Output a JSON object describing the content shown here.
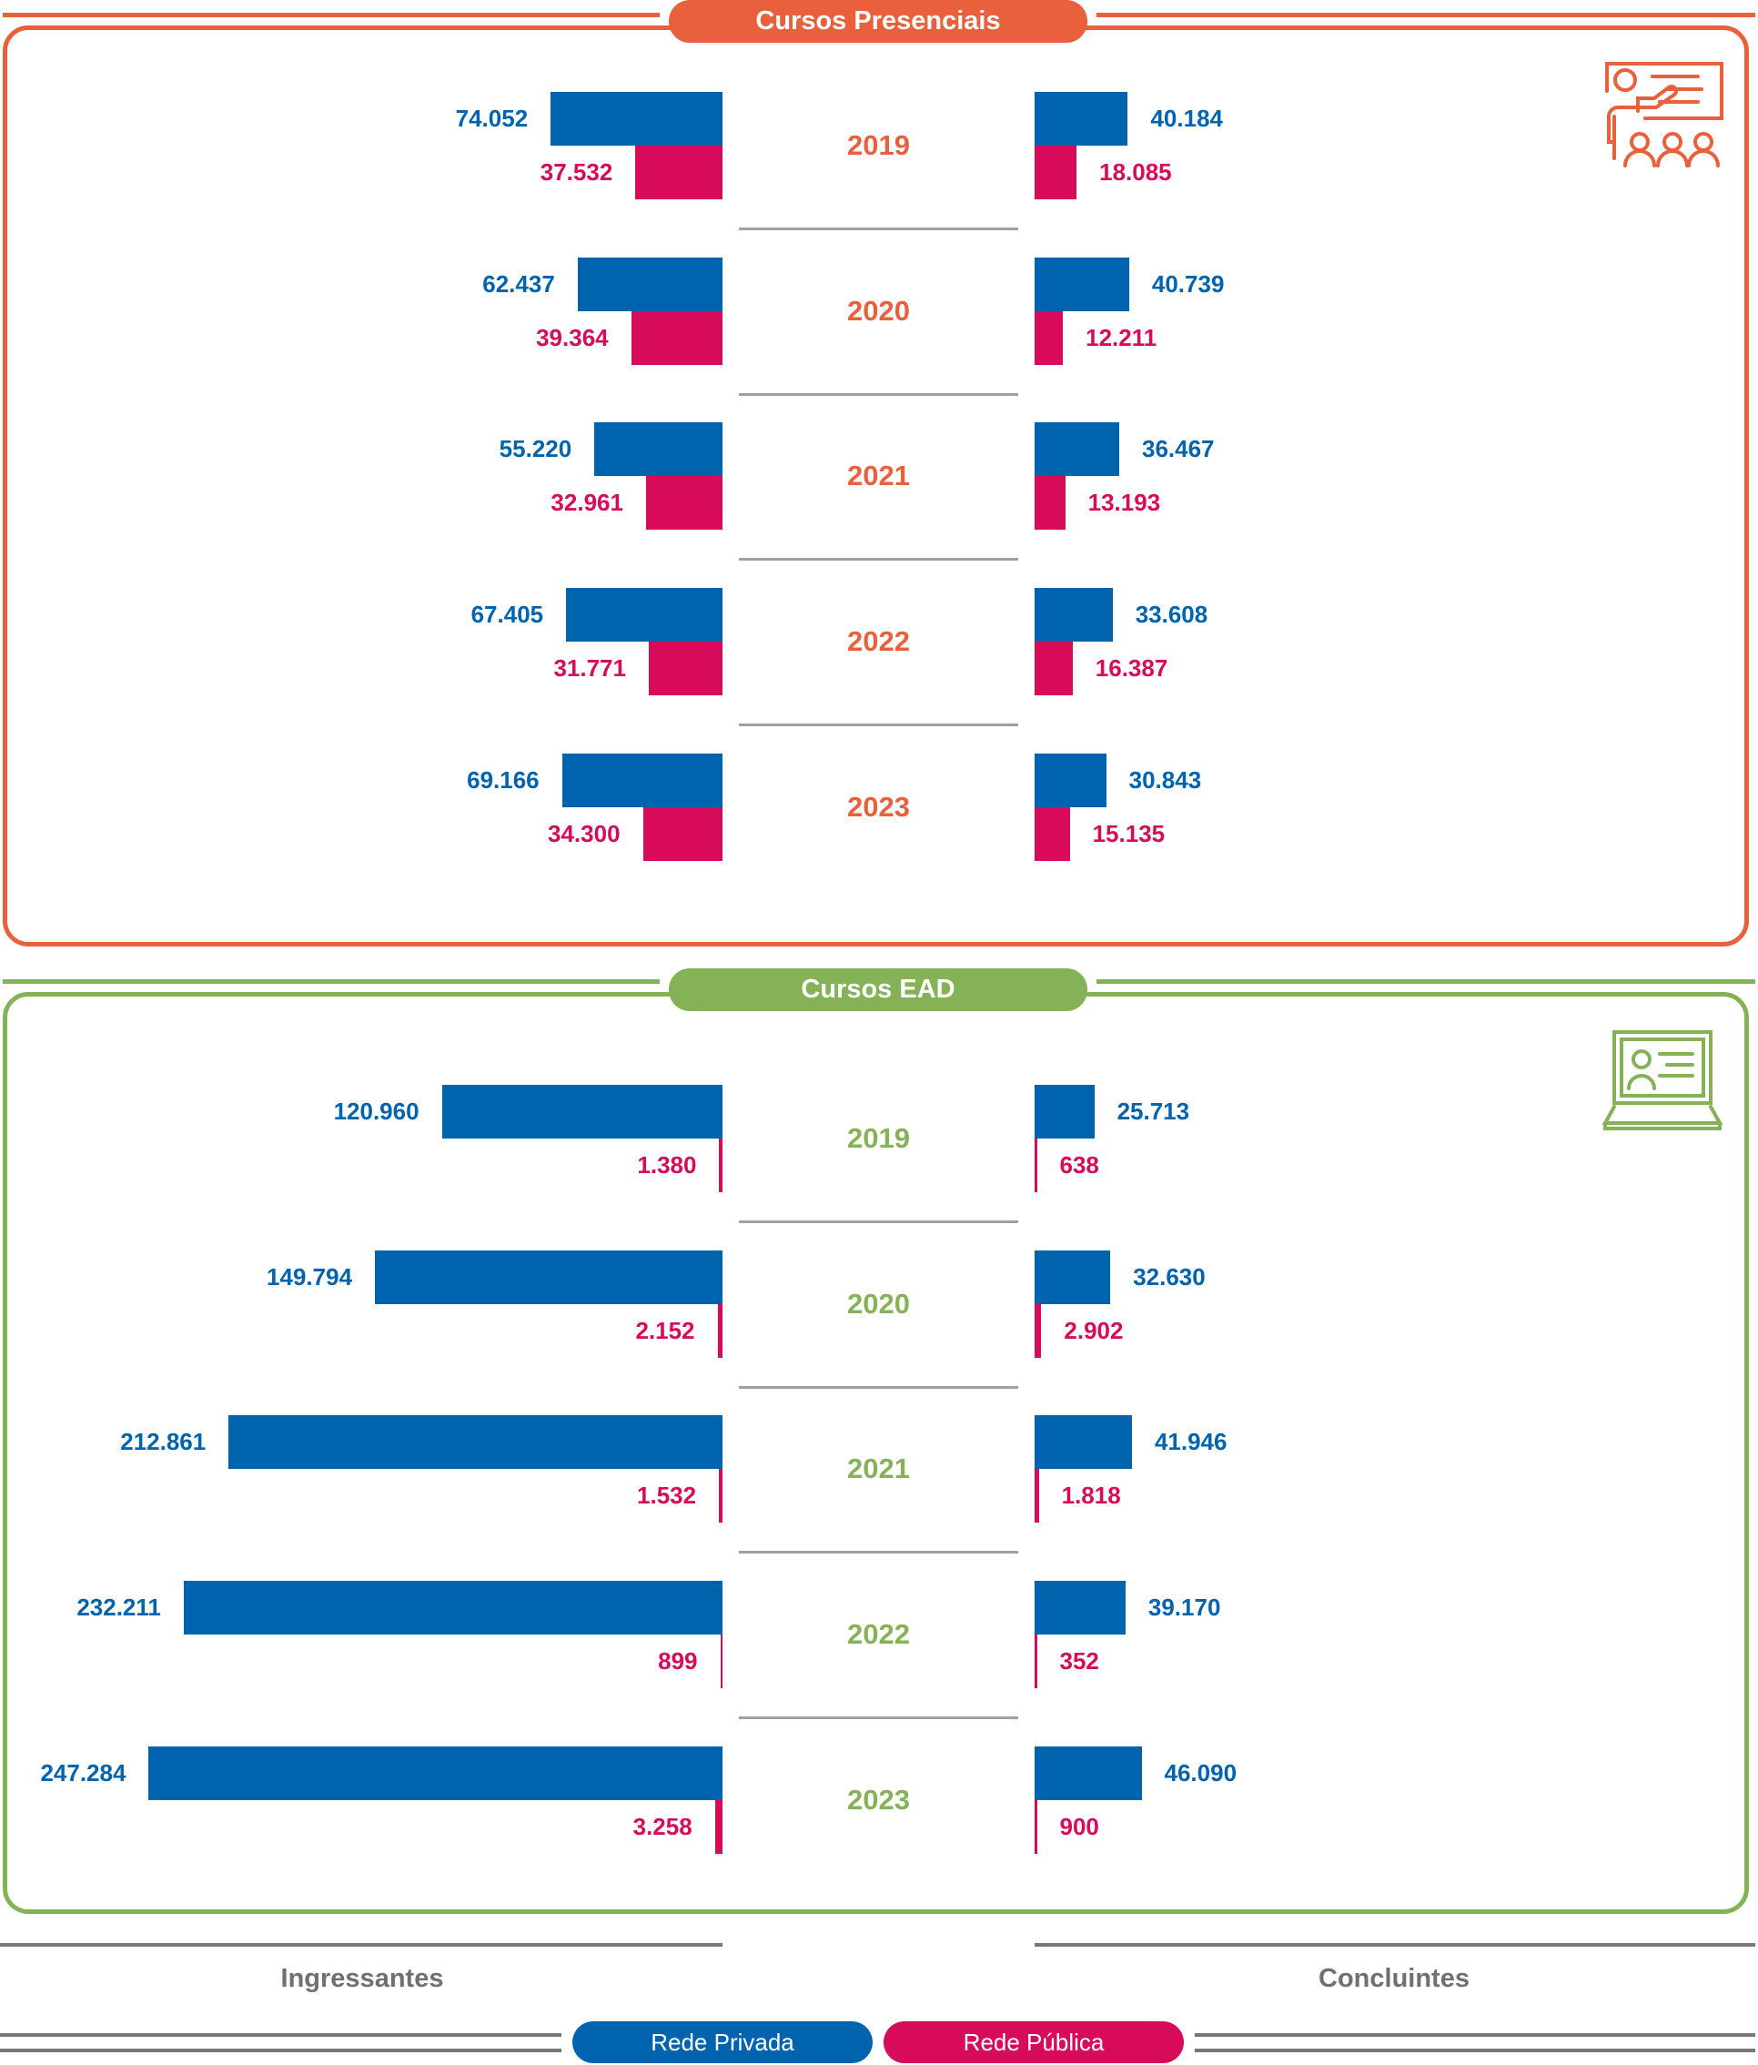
{
  "colors": {
    "presencial": "#E8603C",
    "ead": "#86B257",
    "private": "#0063AE",
    "public": "#D80A5A",
    "neutral": "#707070"
  },
  "chart_data": [
    {
      "type": "bar",
      "title": "Cursos Presenciais",
      "icon": "teacher-presentation-icon",
      "categories": [
        "2019",
        "2020",
        "2021",
        "2022",
        "2023"
      ],
      "series": [
        {
          "name": "Rede Privada",
          "group": "Ingressantes",
          "values": [
            74052,
            62437,
            55220,
            67405,
            69166
          ],
          "labels": [
            "74.052",
            "62.437",
            "55.220",
            "67.405",
            "69.166"
          ]
        },
        {
          "name": "Rede Pública",
          "group": "Ingressantes",
          "values": [
            37532,
            39364,
            32961,
            31771,
            34300
          ],
          "labels": [
            "37.532",
            "39.364",
            "32.961",
            "31.771",
            "34.300"
          ]
        },
        {
          "name": "Rede Privada",
          "group": "Concluintes",
          "values": [
            40184,
            40739,
            36467,
            33608,
            30843
          ],
          "labels": [
            "40.184",
            "40.739",
            "36.467",
            "33.608",
            "30.843"
          ]
        },
        {
          "name": "Rede Pública",
          "group": "Concluintes",
          "values": [
            18085,
            12211,
            13193,
            16387,
            15135
          ],
          "labels": [
            "18.085",
            "12.211",
            "13.193",
            "16.387",
            "15.135"
          ]
        }
      ]
    },
    {
      "type": "bar",
      "title": "Cursos EAD",
      "icon": "laptop-online-class-icon",
      "categories": [
        "2019",
        "2020",
        "2021",
        "2022",
        "2023"
      ],
      "series": [
        {
          "name": "Rede Privada",
          "group": "Ingressantes",
          "values": [
            120960,
            149794,
            212861,
            232211,
            247284
          ],
          "labels": [
            "120.960",
            "149.794",
            "212.861",
            "232.211",
            "247.284"
          ]
        },
        {
          "name": "Rede Pública",
          "group": "Ingressantes",
          "values": [
            1380,
            2152,
            1532,
            899,
            3258
          ],
          "labels": [
            "1.380",
            "2.152",
            "1.532",
            "899",
            "3.258"
          ]
        },
        {
          "name": "Rede Privada",
          "group": "Concluintes",
          "values": [
            25713,
            32630,
            41946,
            39170,
            46090
          ],
          "labels": [
            "25.713",
            "32.630",
            "41.946",
            "39.170",
            "46.090"
          ]
        },
        {
          "name": "Rede Pública",
          "group": "Concluintes",
          "values": [
            638,
            2902,
            1818,
            352,
            900
          ],
          "labels": [
            "638",
            "2.902",
            "1.818",
            "352",
            "900"
          ]
        }
      ]
    }
  ],
  "footer": {
    "left_label": "Ingressantes",
    "right_label": "Concluintes"
  },
  "legend": {
    "private": "Rede Privada",
    "public": "Rede Pública"
  }
}
